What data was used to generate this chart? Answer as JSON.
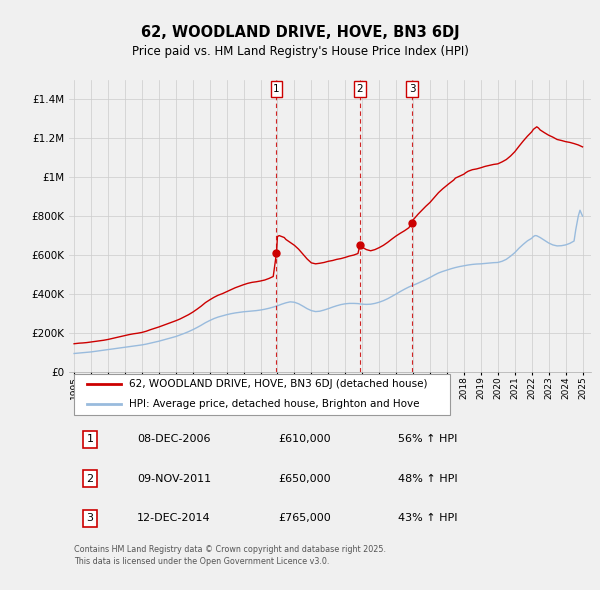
{
  "title": "62, WOODLAND DRIVE, HOVE, BN3 6DJ",
  "subtitle": "Price paid vs. HM Land Registry's House Price Index (HPI)",
  "title_fontsize": 10.5,
  "subtitle_fontsize": 8.5,
  "background_color": "#f0f0f0",
  "plot_bg_color": "#f0f0f0",
  "grid_color": "#cccccc",
  "ylim": [
    0,
    1500000
  ],
  "yticks": [
    0,
    200000,
    400000,
    600000,
    800000,
    1000000,
    1200000,
    1400000
  ],
  "ytick_labels": [
    "£0",
    "£200K",
    "£400K",
    "£600K",
    "£800K",
    "£1M",
    "£1.2M",
    "£1.4M"
  ],
  "xlim_start": 1994.7,
  "xlim_end": 2025.5,
  "xtick_years": [
    1995,
    1996,
    1997,
    1998,
    1999,
    2000,
    2001,
    2002,
    2003,
    2004,
    2005,
    2006,
    2007,
    2008,
    2009,
    2010,
    2011,
    2012,
    2013,
    2014,
    2015,
    2016,
    2017,
    2018,
    2019,
    2020,
    2021,
    2022,
    2023,
    2024,
    2025
  ],
  "red_line_color": "#cc0000",
  "blue_line_color": "#99bbdd",
  "transaction_line_color": "#cc0000",
  "transactions": [
    {
      "num": 1,
      "date": "08-DEC-2006",
      "price": "610,000",
      "hpi_diff": "56% ↑ HPI",
      "x_year": 2006.94
    },
    {
      "num": 2,
      "date": "09-NOV-2011",
      "price": "650,000",
      "hpi_diff": "48% ↑ HPI",
      "x_year": 2011.86
    },
    {
      "num": 3,
      "date": "12-DEC-2014",
      "price": "765,000",
      "hpi_diff": "43% ↑ HPI",
      "x_year": 2014.94
    }
  ],
  "transaction_prices": [
    610000,
    650000,
    765000
  ],
  "legend_red_label": "62, WOODLAND DRIVE, HOVE, BN3 6DJ (detached house)",
  "legend_blue_label": "HPI: Average price, detached house, Brighton and Hove",
  "footer": "Contains HM Land Registry data © Crown copyright and database right 2025.\nThis data is licensed under the Open Government Licence v3.0.",
  "red_data": [
    [
      1995.0,
      145000
    ],
    [
      1995.1,
      146000
    ],
    [
      1995.2,
      147000
    ],
    [
      1995.3,
      148000
    ],
    [
      1995.5,
      149000
    ],
    [
      1995.75,
      151000
    ],
    [
      1996.0,
      154000
    ],
    [
      1996.25,
      157000
    ],
    [
      1996.5,
      160000
    ],
    [
      1996.75,
      163000
    ],
    [
      1997.0,
      167000
    ],
    [
      1997.25,
      172000
    ],
    [
      1997.5,
      177000
    ],
    [
      1997.75,
      182000
    ],
    [
      1998.0,
      187000
    ],
    [
      1998.25,
      192000
    ],
    [
      1998.5,
      196000
    ],
    [
      1998.75,
      199000
    ],
    [
      1999.0,
      203000
    ],
    [
      1999.25,
      209000
    ],
    [
      1999.5,
      217000
    ],
    [
      1999.75,
      224000
    ],
    [
      2000.0,
      231000
    ],
    [
      2000.25,
      239000
    ],
    [
      2000.5,
      247000
    ],
    [
      2000.75,
      255000
    ],
    [
      2001.0,
      263000
    ],
    [
      2001.25,
      272000
    ],
    [
      2001.5,
      283000
    ],
    [
      2001.75,
      294000
    ],
    [
      2002.0,
      307000
    ],
    [
      2002.25,
      322000
    ],
    [
      2002.5,
      338000
    ],
    [
      2002.75,
      356000
    ],
    [
      2003.0,
      370000
    ],
    [
      2003.25,
      383000
    ],
    [
      2003.5,
      394000
    ],
    [
      2003.75,
      402000
    ],
    [
      2004.0,
      412000
    ],
    [
      2004.25,
      422000
    ],
    [
      2004.5,
      432000
    ],
    [
      2004.75,
      440000
    ],
    [
      2005.0,
      448000
    ],
    [
      2005.25,
      455000
    ],
    [
      2005.5,
      460000
    ],
    [
      2005.75,
      463000
    ],
    [
      2006.0,
      467000
    ],
    [
      2006.25,
      472000
    ],
    [
      2006.5,
      480000
    ],
    [
      2006.75,
      490000
    ],
    [
      2006.94,
      610000
    ],
    [
      2007.0,
      695000
    ],
    [
      2007.1,
      700000
    ],
    [
      2007.25,
      695000
    ],
    [
      2007.4,
      690000
    ],
    [
      2007.5,
      680000
    ],
    [
      2007.75,
      665000
    ],
    [
      2008.0,
      650000
    ],
    [
      2008.25,
      630000
    ],
    [
      2008.5,
      605000
    ],
    [
      2008.75,
      580000
    ],
    [
      2009.0,
      560000
    ],
    [
      2009.25,
      555000
    ],
    [
      2009.5,
      558000
    ],
    [
      2009.75,
      562000
    ],
    [
      2010.0,
      568000
    ],
    [
      2010.25,
      572000
    ],
    [
      2010.5,
      578000
    ],
    [
      2010.75,
      582000
    ],
    [
      2011.0,
      588000
    ],
    [
      2011.25,
      595000
    ],
    [
      2011.5,
      600000
    ],
    [
      2011.75,
      608000
    ],
    [
      2011.86,
      650000
    ],
    [
      2012.0,
      640000
    ],
    [
      2012.1,
      635000
    ],
    [
      2012.25,
      628000
    ],
    [
      2012.5,
      622000
    ],
    [
      2012.75,
      628000
    ],
    [
      2013.0,
      638000
    ],
    [
      2013.25,
      650000
    ],
    [
      2013.5,
      665000
    ],
    [
      2013.75,
      682000
    ],
    [
      2014.0,
      698000
    ],
    [
      2014.25,
      712000
    ],
    [
      2014.5,
      725000
    ],
    [
      2014.75,
      740000
    ],
    [
      2014.94,
      765000
    ],
    [
      2015.0,
      780000
    ],
    [
      2015.1,
      790000
    ],
    [
      2015.2,
      800000
    ],
    [
      2015.3,
      810000
    ],
    [
      2015.5,
      828000
    ],
    [
      2015.75,
      850000
    ],
    [
      2016.0,
      870000
    ],
    [
      2016.25,
      895000
    ],
    [
      2016.5,
      920000
    ],
    [
      2016.75,
      940000
    ],
    [
      2017.0,
      958000
    ],
    [
      2017.1,
      965000
    ],
    [
      2017.25,
      975000
    ],
    [
      2017.4,
      985000
    ],
    [
      2017.5,
      995000
    ],
    [
      2017.75,
      1005000
    ],
    [
      2018.0,
      1015000
    ],
    [
      2018.1,
      1022000
    ],
    [
      2018.25,
      1030000
    ],
    [
      2018.5,
      1038000
    ],
    [
      2018.75,
      1042000
    ],
    [
      2019.0,
      1048000
    ],
    [
      2019.25,
      1055000
    ],
    [
      2019.5,
      1060000
    ],
    [
      2019.75,
      1065000
    ],
    [
      2020.0,
      1068000
    ],
    [
      2020.1,
      1072000
    ],
    [
      2020.25,
      1078000
    ],
    [
      2020.5,
      1090000
    ],
    [
      2020.75,
      1108000
    ],
    [
      2021.0,
      1130000
    ],
    [
      2021.25,
      1158000
    ],
    [
      2021.5,
      1185000
    ],
    [
      2021.75,
      1210000
    ],
    [
      2022.0,
      1232000
    ],
    [
      2022.1,
      1245000
    ],
    [
      2022.25,
      1255000
    ],
    [
      2022.3,
      1258000
    ],
    [
      2022.4,
      1252000
    ],
    [
      2022.5,
      1242000
    ],
    [
      2022.75,
      1228000
    ],
    [
      2023.0,
      1215000
    ],
    [
      2023.25,
      1205000
    ],
    [
      2023.4,
      1198000
    ],
    [
      2023.5,
      1193000
    ],
    [
      2023.75,
      1188000
    ],
    [
      2024.0,
      1182000
    ],
    [
      2024.25,
      1178000
    ],
    [
      2024.5,
      1172000
    ],
    [
      2024.75,
      1165000
    ],
    [
      2025.0,
      1155000
    ]
  ],
  "blue_data": [
    [
      1995.0,
      95000
    ],
    [
      1995.25,
      97000
    ],
    [
      1995.5,
      99000
    ],
    [
      1995.75,
      101000
    ],
    [
      1996.0,
      103000
    ],
    [
      1996.25,
      106000
    ],
    [
      1996.5,
      109000
    ],
    [
      1996.75,
      112000
    ],
    [
      1997.0,
      115000
    ],
    [
      1997.25,
      118000
    ],
    [
      1997.5,
      121000
    ],
    [
      1997.75,
      124000
    ],
    [
      1998.0,
      127000
    ],
    [
      1998.25,
      130000
    ],
    [
      1998.5,
      133000
    ],
    [
      1998.75,
      136000
    ],
    [
      1999.0,
      139000
    ],
    [
      1999.25,
      143000
    ],
    [
      1999.5,
      148000
    ],
    [
      1999.75,
      153000
    ],
    [
      2000.0,
      158000
    ],
    [
      2000.25,
      164000
    ],
    [
      2000.5,
      170000
    ],
    [
      2000.75,
      176000
    ],
    [
      2001.0,
      182000
    ],
    [
      2001.25,
      190000
    ],
    [
      2001.5,
      198000
    ],
    [
      2001.75,
      207000
    ],
    [
      2002.0,
      217000
    ],
    [
      2002.25,
      228000
    ],
    [
      2002.5,
      240000
    ],
    [
      2002.75,
      253000
    ],
    [
      2003.0,
      264000
    ],
    [
      2003.25,
      274000
    ],
    [
      2003.5,
      282000
    ],
    [
      2003.75,
      288000
    ],
    [
      2004.0,
      294000
    ],
    [
      2004.25,
      299000
    ],
    [
      2004.5,
      303000
    ],
    [
      2004.75,
      306000
    ],
    [
      2005.0,
      309000
    ],
    [
      2005.25,
      311000
    ],
    [
      2005.5,
      313000
    ],
    [
      2005.75,
      315000
    ],
    [
      2006.0,
      318000
    ],
    [
      2006.25,
      322000
    ],
    [
      2006.5,
      327000
    ],
    [
      2006.75,
      333000
    ],
    [
      2007.0,
      340000
    ],
    [
      2007.25,
      348000
    ],
    [
      2007.5,
      355000
    ],
    [
      2007.75,
      360000
    ],
    [
      2008.0,
      358000
    ],
    [
      2008.25,
      350000
    ],
    [
      2008.5,
      338000
    ],
    [
      2008.75,
      325000
    ],
    [
      2009.0,
      315000
    ],
    [
      2009.25,
      310000
    ],
    [
      2009.5,
      312000
    ],
    [
      2009.75,
      318000
    ],
    [
      2010.0,
      325000
    ],
    [
      2010.25,
      333000
    ],
    [
      2010.5,
      340000
    ],
    [
      2010.75,
      346000
    ],
    [
      2011.0,
      350000
    ],
    [
      2011.25,
      352000
    ],
    [
      2011.5,
      352000
    ],
    [
      2011.75,
      351000
    ],
    [
      2012.0,
      348000
    ],
    [
      2012.25,
      347000
    ],
    [
      2012.5,
      348000
    ],
    [
      2012.75,
      352000
    ],
    [
      2013.0,
      358000
    ],
    [
      2013.25,
      366000
    ],
    [
      2013.5,
      376000
    ],
    [
      2013.75,
      388000
    ],
    [
      2014.0,
      400000
    ],
    [
      2014.25,
      413000
    ],
    [
      2014.5,
      425000
    ],
    [
      2014.75,
      436000
    ],
    [
      2015.0,
      445000
    ],
    [
      2015.25,
      454000
    ],
    [
      2015.5,
      464000
    ],
    [
      2015.75,
      474000
    ],
    [
      2016.0,
      485000
    ],
    [
      2016.25,
      497000
    ],
    [
      2016.5,
      508000
    ],
    [
      2016.75,
      516000
    ],
    [
      2017.0,
      523000
    ],
    [
      2017.25,
      530000
    ],
    [
      2017.5,
      536000
    ],
    [
      2017.75,
      541000
    ],
    [
      2018.0,
      545000
    ],
    [
      2018.25,
      549000
    ],
    [
      2018.5,
      552000
    ],
    [
      2018.75,
      554000
    ],
    [
      2019.0,
      555000
    ],
    [
      2019.25,
      557000
    ],
    [
      2019.5,
      559000
    ],
    [
      2019.75,
      561000
    ],
    [
      2020.0,
      562000
    ],
    [
      2020.25,
      568000
    ],
    [
      2020.5,
      578000
    ],
    [
      2020.75,
      594000
    ],
    [
      2021.0,
      612000
    ],
    [
      2021.25,
      635000
    ],
    [
      2021.5,
      655000
    ],
    [
      2021.75,
      673000
    ],
    [
      2022.0,
      686000
    ],
    [
      2022.1,
      695000
    ],
    [
      2022.2,
      700000
    ],
    [
      2022.3,
      699000
    ],
    [
      2022.5,
      690000
    ],
    [
      2022.75,
      676000
    ],
    [
      2023.0,
      662000
    ],
    [
      2023.25,
      652000
    ],
    [
      2023.5,
      647000
    ],
    [
      2023.75,
      648000
    ],
    [
      2024.0,
      652000
    ],
    [
      2024.25,
      660000
    ],
    [
      2024.5,
      672000
    ],
    [
      2024.6,
      730000
    ],
    [
      2024.75,
      800000
    ],
    [
      2024.85,
      830000
    ],
    [
      2025.0,
      800000
    ]
  ]
}
